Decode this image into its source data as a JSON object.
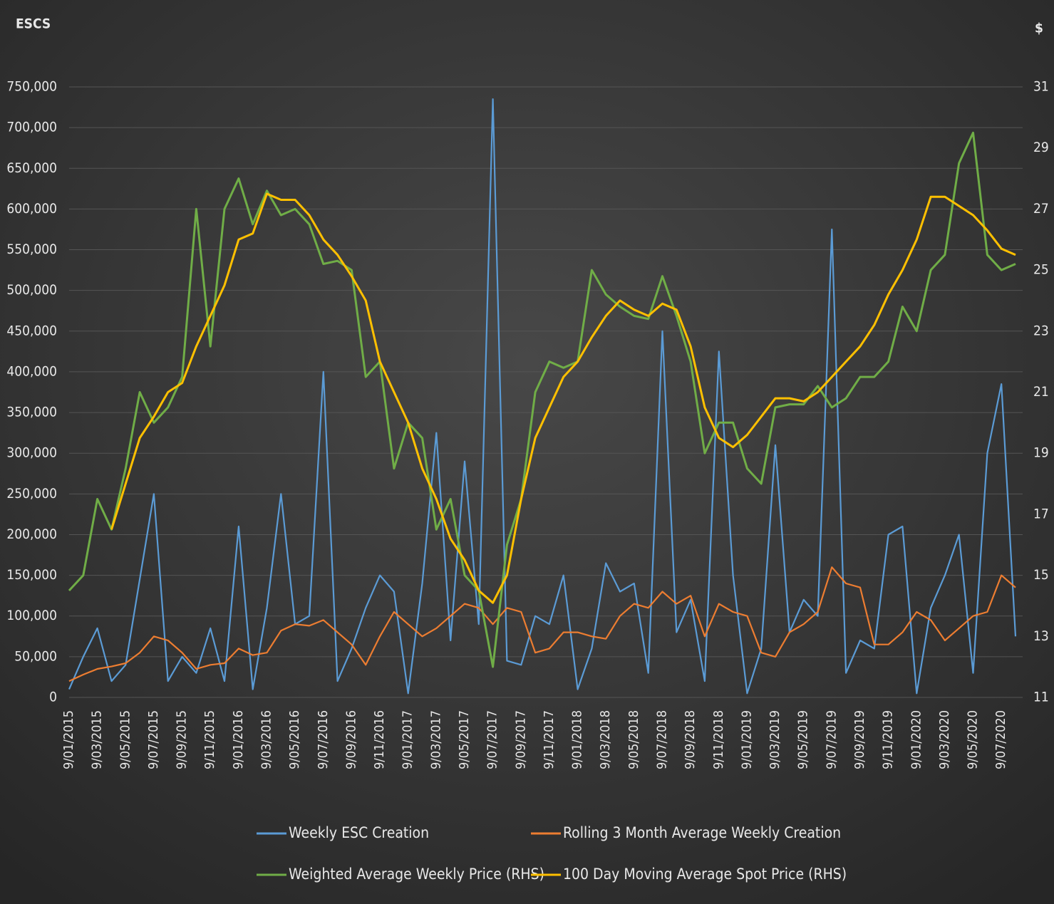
{
  "chart_data": {
    "type": "line",
    "y_axis_label": "ESCS",
    "y2_axis_label": "$",
    "x": [
      "9/01/2015",
      "9/02/2015",
      "9/03/2015",
      "9/04/2015",
      "9/05/2015",
      "9/06/2015",
      "9/07/2015",
      "9/08/2015",
      "9/09/2015",
      "9/10/2015",
      "9/11/2015",
      "9/12/2015",
      "9/01/2016",
      "9/02/2016",
      "9/03/2016",
      "9/04/2016",
      "9/05/2016",
      "9/06/2016",
      "9/07/2016",
      "9/08/2016",
      "9/09/2016",
      "9/10/2016",
      "9/11/2016",
      "9/12/2016",
      "9/01/2017",
      "9/02/2017",
      "9/03/2017",
      "9/04/2017",
      "9/05/2017",
      "9/06/2017",
      "9/07/2017",
      "9/08/2017",
      "9/09/2017",
      "9/10/2017",
      "9/11/2017",
      "9/12/2017",
      "9/01/2018",
      "9/02/2018",
      "9/03/2018",
      "9/04/2018",
      "9/05/2018",
      "9/06/2018",
      "9/07/2018",
      "9/08/2018",
      "9/09/2018",
      "9/10/2018",
      "9/11/2018",
      "9/12/2018",
      "9/01/2019",
      "9/02/2019",
      "9/03/2019",
      "9/04/2019",
      "9/05/2019",
      "9/06/2019",
      "9/07/2019",
      "9/08/2019",
      "9/09/2019",
      "9/10/2019",
      "9/11/2019",
      "9/12/2019",
      "9/01/2020",
      "9/02/2020",
      "9/03/2020",
      "9/04/2020",
      "9/05/2020",
      "9/06/2020",
      "9/07/2020",
      "9/08/2020"
    ],
    "xlim": [
      "9/01/2015",
      "9/08/2020"
    ],
    "xticks": [
      "9/01/2015",
      "9/03/2015",
      "9/05/2015",
      "9/07/2015",
      "9/09/2015",
      "9/11/2015",
      "9/01/2016",
      "9/03/2016",
      "9/05/2016",
      "9/07/2016",
      "9/09/2016",
      "9/11/2016",
      "9/01/2017",
      "9/03/2017",
      "9/05/2017",
      "9/07/2017",
      "9/09/2017",
      "9/11/2017",
      "9/01/2018",
      "9/03/2018",
      "9/05/2018",
      "9/07/2018",
      "9/09/2018",
      "9/11/2018",
      "9/01/2019",
      "9/03/2019",
      "9/05/2019",
      "9/07/2019",
      "9/09/2019",
      "9/11/2019",
      "9/01/2020",
      "9/03/2020",
      "9/05/2020",
      "9/07/2020"
    ],
    "ylim": [
      0,
      750000
    ],
    "yticks": [
      0,
      {
        "value": 50000,
        "label": "50,000"
      },
      {
        "value": 100000,
        "label": "100,000"
      },
      {
        "value": 150000,
        "label": "150,000"
      },
      {
        "value": 200000,
        "label": "200,000"
      },
      {
        "value": 250000,
        "label": "250,000"
      },
      {
        "value": 300000,
        "label": "300,000"
      },
      {
        "value": 350000,
        "label": "350,000"
      },
      {
        "value": 400000,
        "label": "400,000"
      },
      {
        "value": 450000,
        "label": "450,000"
      },
      {
        "value": 500000,
        "label": "500,000"
      },
      {
        "value": 550000,
        "label": "550,000"
      },
      {
        "value": 600000,
        "label": "600,000"
      },
      {
        "value": 650000,
        "label": "650,000"
      },
      {
        "value": 700000,
        "label": "700,000"
      },
      {
        "value": 750000,
        "label": "750,000"
      }
    ],
    "y2lim": [
      11,
      31
    ],
    "y2ticks": [
      11,
      13,
      15,
      17,
      19,
      21,
      23,
      25,
      27,
      29,
      31
    ],
    "grid": true,
    "legend": "bottom",
    "series": [
      {
        "name": "Weekly ESC Creation",
        "color": "#5b9bd5",
        "values": [
          10000,
          50000,
          85000,
          20000,
          40000,
          145000,
          250000,
          20000,
          50000,
          30000,
          85000,
          20000,
          210000,
          10000,
          110000,
          250000,
          90000,
          100000,
          400000,
          20000,
          60000,
          110000,
          150000,
          130000,
          5000,
          140000,
          325000,
          70000,
          290000,
          90000,
          735000,
          45000,
          40000,
          100000,
          90000,
          150000,
          10000,
          60000,
          165000,
          130000,
          140000,
          30000,
          450000,
          80000,
          120000,
          20000,
          425000,
          150000,
          5000,
          60000,
          310000,
          80000,
          120000,
          100000,
          575000,
          30000,
          70000,
          60000,
          200000,
          210000,
          5000,
          110000,
          150000,
          200000,
          30000,
          300000,
          385000,
          75000
        ]
      },
      {
        "name": "Rolling 3 Month Average Weekly Creation",
        "color": "#ed7d31",
        "values": [
          20000,
          28000,
          35000,
          38000,
          42000,
          55000,
          75000,
          70000,
          55000,
          35000,
          40000,
          42000,
          60000,
          52000,
          55000,
          82000,
          90000,
          88000,
          95000,
          80000,
          65000,
          40000,
          75000,
          105000,
          90000,
          75000,
          85000,
          100000,
          115000,
          110000,
          90000,
          110000,
          105000,
          55000,
          60000,
          80000,
          80000,
          75000,
          72000,
          100000,
          115000,
          110000,
          130000,
          115000,
          125000,
          75000,
          115000,
          105000,
          100000,
          55000,
          50000,
          80000,
          90000,
          105000,
          160000,
          140000,
          135000,
          65000,
          65000,
          80000,
          105000,
          95000,
          70000,
          85000,
          100000,
          105000,
          150000,
          135000
        ]
      },
      {
        "name": "Weighted Average Weekly Price (RHS)",
        "color": "#70ad47",
        "axis": "y2",
        "values": [
          14.5,
          15,
          17.5,
          16.5,
          18.5,
          21,
          20,
          20.5,
          21.5,
          27,
          22.5,
          27,
          28,
          26.5,
          27.6,
          26.8,
          27,
          26.5,
          25.2,
          25.3,
          25,
          21.5,
          22,
          18.5,
          20,
          19.5,
          16.5,
          17.5,
          15,
          14.5,
          12,
          16,
          17.5,
          21,
          22,
          21.8,
          22,
          25,
          24.2,
          23.8,
          23.5,
          23.4,
          24.8,
          23.5,
          22,
          19,
          20,
          20,
          18.5,
          18,
          20.5,
          20.6,
          20.6,
          21.2,
          20.5,
          20.8,
          21.5,
          21.5,
          22,
          23.8,
          23,
          25,
          25.5,
          28.5,
          29.5,
          25.5,
          25,
          25.2
        ]
      },
      {
        "name": "100 Day Moving Average Spot Price (RHS)",
        "color": "#ffc000",
        "axis": "y2",
        "values": [
          null,
          null,
          null,
          16.5,
          18,
          19.5,
          20.2,
          21,
          21.3,
          22.5,
          23.5,
          24.5,
          26,
          26.2,
          27.5,
          27.3,
          27.3,
          26.8,
          26,
          25.5,
          24.8,
          24,
          22,
          21,
          20,
          18.5,
          17.5,
          16.2,
          15.5,
          14.5,
          14.1,
          15,
          17.5,
          19.5,
          20.5,
          21.5,
          22,
          22.8,
          23.5,
          24,
          23.7,
          23.5,
          23.9,
          23.7,
          22.5,
          20.5,
          19.5,
          19.2,
          19.6,
          20.2,
          20.8,
          20.8,
          20.7,
          21,
          21.5,
          22,
          22.5,
          23.2,
          24.2,
          25,
          26,
          27.4,
          27.4,
          27.1,
          26.8,
          26.3,
          25.7,
          25.5
        ]
      }
    ]
  }
}
